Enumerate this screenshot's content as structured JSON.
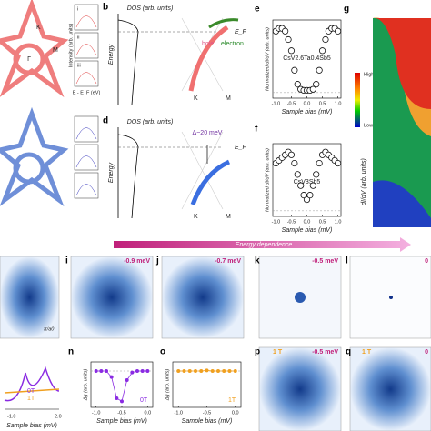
{
  "labels": {
    "b": "b",
    "d": "d",
    "e": "e",
    "f": "f",
    "g": "g",
    "i": "i",
    "j": "j",
    "k": "k",
    "l": "l",
    "n": "n",
    "o": "o",
    "p": "p",
    "q": "q",
    "K": "K",
    "M": "M",
    "Gamma": "Γ",
    "sub_i": "i",
    "sub_ii": "ii",
    "sub_iii": "iii",
    "intensity": "Intensity (arb. units)",
    "e_ef": "E - E_F (eV)",
    "dos": "DOS (arb. units)",
    "energy": "Energy",
    "ef": "E_F",
    "hole": "hole",
    "electron": "electron",
    "delta": "Δ~20 meV",
    "high": "High",
    "low": "Low",
    "didv": "dI/dV (arb. units)",
    "energy_dependence": "Energy dependence",
    "pi_a0": "π/a0",
    "bias_i": "-0.9 meV",
    "bias_j": "-0.7 meV",
    "bias_k": "-0.5 meV",
    "bias_l": "0",
    "field_p": "1 T",
    "bias_p": "-0.5 meV",
    "field_q": "1 T",
    "bias_q": "0",
    "m_0T": "0T",
    "m_1T": "1T",
    "m_xlabel": "Sample bias (mV)",
    "m_tick_a": "-1.0",
    "m_tick_b": "2.0"
  },
  "chart_data": [
    {
      "type": "scatter",
      "title": "CsV2.6Ta0.4Sb5",
      "x_label": "Sample bias (mV)",
      "y_label": "Normalized dI/dV (arb. units)",
      "x": [
        -1.0,
        -0.9,
        -0.8,
        -0.7,
        -0.6,
        -0.5,
        -0.4,
        -0.3,
        -0.2,
        -0.1,
        0.0,
        0.1,
        0.2,
        0.3,
        0.4,
        0.5,
        0.6,
        0.7,
        0.8,
        0.9,
        1.0
      ],
      "series": [
        {
          "name": "CsV2.6Ta0.4Sb5",
          "color": "#111111",
          "values": [
            1.1,
            1.15,
            1.15,
            1.1,
            0.95,
            0.75,
            0.4,
            0.15,
            0.06,
            0.04,
            0.04,
            0.04,
            0.06,
            0.15,
            0.4,
            0.75,
            0.95,
            1.1,
            1.15,
            1.15,
            1.1
          ]
        }
      ],
      "xlim": [
        -1.1,
        1.1
      ],
      "ylim": [
        -0.1,
        1.3
      ],
      "xticks": [
        {
          "value": -1,
          "label": "-1.0"
        },
        {
          "value": -0.5,
          "label": "-0.5"
        },
        {
          "value": 0,
          "label": "0.0"
        },
        {
          "value": 0.5,
          "label": "0.5"
        },
        {
          "value": 1,
          "label": "1.0"
        }
      ]
    },
    {
      "type": "scatter",
      "title": "CsV3Sb5",
      "x_label": "Sample bias (mV)",
      "y_label": "Normalized dI/dV (arb. units)",
      "x": [
        -1.0,
        -0.9,
        -0.8,
        -0.7,
        -0.6,
        -0.5,
        -0.4,
        -0.3,
        -0.2,
        -0.1,
        0.0,
        0.1,
        0.2,
        0.3,
        0.4,
        0.5,
        0.6,
        0.7,
        0.8,
        0.9,
        1.0
      ],
      "series": [
        {
          "name": "CsV3Sb5",
          "color": "#111111",
          "values": [
            0.85,
            0.9,
            0.95,
            1.0,
            1.05,
            1.0,
            0.85,
            0.65,
            0.45,
            0.28,
            0.2,
            0.28,
            0.45,
            0.65,
            0.85,
            1.0,
            1.05,
            1.0,
            0.95,
            0.9,
            0.85
          ]
        }
      ],
      "xlim": [
        -1.1,
        1.1
      ],
      "ylim": [
        -0.1,
        1.2
      ],
      "xticks": [
        {
          "value": -1,
          "label": "-1.0"
        },
        {
          "value": -0.5,
          "label": "-0.5"
        },
        {
          "value": 0,
          "label": "0.0"
        },
        {
          "value": 0.5,
          "label": "0.5"
        },
        {
          "value": 1,
          "label": "1.0"
        }
      ]
    },
    {
      "type": "line",
      "x_label": "Sample bias (mV)",
      "y_label": "Δg (arb. units)",
      "x": [
        -1.0,
        -0.9,
        -0.8,
        -0.7,
        -0.6,
        -0.5,
        -0.4,
        -0.3,
        -0.2,
        -0.1,
        0.0
      ],
      "series": [
        {
          "name": "0T",
          "color": "#8a2be2",
          "values": [
            0,
            0,
            0,
            -0.2,
            -0.9,
            -1.0,
            -0.3,
            -0.05,
            0,
            0,
            0
          ]
        }
      ],
      "xlim": [
        -1.1,
        0.1
      ],
      "ylim": [
        -1.2,
        0.3
      ],
      "xticks": [
        {
          "value": -1,
          "label": "-1.0"
        },
        {
          "value": -0.5,
          "label": "-0.5"
        },
        {
          "value": 0,
          "label": "0.0"
        }
      ]
    },
    {
      "type": "line",
      "x_label": "Sample bias (mV)",
      "y_label": "Δg (arb. units)",
      "x": [
        -1.0,
        -0.9,
        -0.8,
        -0.7,
        -0.6,
        -0.5,
        -0.4,
        -0.3,
        -0.2,
        -0.1,
        0.0
      ],
      "series": [
        {
          "name": "1T",
          "color": "#f0a020",
          "values": [
            0,
            0,
            0,
            0,
            0,
            0.02,
            0,
            0,
            0,
            0,
            0
          ]
        }
      ],
      "xlim": [
        -1.1,
        0.1
      ],
      "ylim": [
        -1.2,
        0.3
      ],
      "xticks": [
        {
          "value": -1,
          "label": "-1.0"
        },
        {
          "value": -0.5,
          "label": "-0.5"
        },
        {
          "value": 0,
          "label": "0.0"
        }
      ]
    }
  ]
}
